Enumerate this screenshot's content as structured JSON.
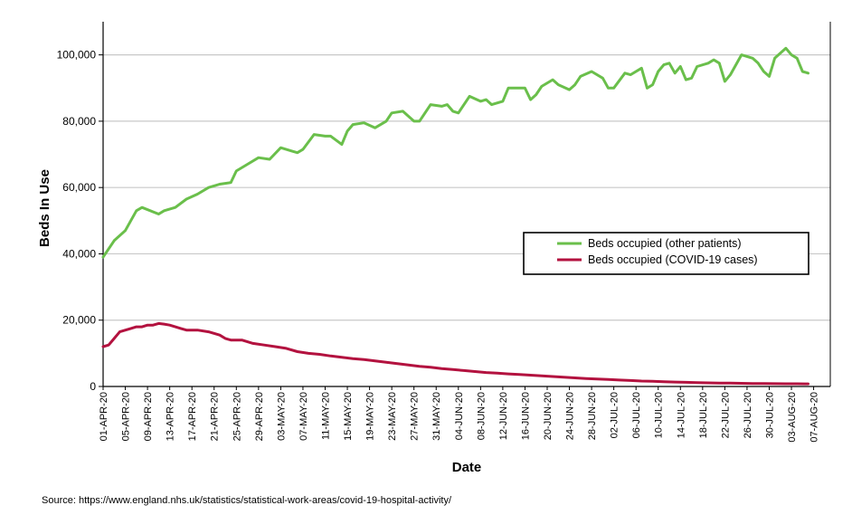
{
  "chart_data": {
    "type": "line",
    "xlabel": "Date",
    "ylabel": "Beds In Use",
    "ylim": [
      0,
      110000
    ],
    "yticks": [
      0,
      20000,
      40000,
      60000,
      80000,
      100000
    ],
    "ytick_labels": [
      "0",
      "20,000",
      "40,000",
      "60,000",
      "80,000",
      "100,000"
    ],
    "x_tick_labels": [
      "01-APR-20",
      "05-APR-20",
      "09-APR-20",
      "13-APR-20",
      "17-APR-20",
      "21-APR-20",
      "25-APR-20",
      "29-APR-20",
      "03-MAY-20",
      "07-MAY-20",
      "11-MAY-20",
      "15-MAY-20",
      "19-MAY-20",
      "23-MAY-20",
      "27-MAY-20",
      "31-MAY-20",
      "04-JUN-20",
      "08-JUN-20",
      "12-JUN-20",
      "16-JUN-20",
      "20-JUN-20",
      "24-JUN-20",
      "28-JUN-20",
      "02-JUL-20",
      "06-JUL-20",
      "10-JUL-20",
      "14-JUL-20",
      "18-JUL-20",
      "22-JUL-20",
      "26-JUL-20",
      "30-JUL-20",
      "03-AUG-20",
      "07-AUG-20"
    ],
    "x_start": "01-APR-20",
    "x_end": "10-AUG-20",
    "grid": "horizontal",
    "legend_position": "center-right",
    "series": [
      {
        "name": "Beds occupied (other patients)",
        "color": "#6abf4b",
        "anchors": [
          [
            0,
            39000
          ],
          [
            2,
            44000
          ],
          [
            4,
            47000
          ],
          [
            6,
            53000
          ],
          [
            7,
            54000
          ],
          [
            10,
            52000
          ],
          [
            11,
            53000
          ],
          [
            13,
            54000
          ],
          [
            15,
            56500
          ],
          [
            17,
            58000
          ],
          [
            19,
            60000
          ],
          [
            21,
            61000
          ],
          [
            23,
            61500
          ],
          [
            24,
            65000
          ],
          [
            26,
            67000
          ],
          [
            28,
            69000
          ],
          [
            30,
            68500
          ],
          [
            32,
            72000
          ],
          [
            34,
            71000
          ],
          [
            35,
            70500
          ],
          [
            36,
            71500
          ],
          [
            38,
            76000
          ],
          [
            40,
            75500
          ],
          [
            41,
            75500
          ],
          [
            43,
            73000
          ],
          [
            44,
            77000
          ],
          [
            45,
            79000
          ],
          [
            47,
            79500
          ],
          [
            49,
            78000
          ],
          [
            51,
            80000
          ],
          [
            52,
            82500
          ],
          [
            54,
            83000
          ],
          [
            56,
            80000
          ],
          [
            57,
            80000
          ],
          [
            59,
            85000
          ],
          [
            61,
            84500
          ],
          [
            62,
            85000
          ],
          [
            63,
            83000
          ],
          [
            64,
            82500
          ],
          [
            66,
            87500
          ],
          [
            68,
            86000
          ],
          [
            69,
            86500
          ],
          [
            70,
            85000
          ],
          [
            72,
            86000
          ],
          [
            73,
            90000
          ],
          [
            76,
            90000
          ],
          [
            77,
            86500
          ],
          [
            78,
            88000
          ],
          [
            79,
            90500
          ],
          [
            81,
            92500
          ],
          [
            82,
            91000
          ],
          [
            84,
            89500
          ],
          [
            85,
            91000
          ],
          [
            86,
            93500
          ],
          [
            88,
            95000
          ],
          [
            90,
            93000
          ],
          [
            91,
            90000
          ],
          [
            92,
            90000
          ],
          [
            94,
            94500
          ],
          [
            95,
            94000
          ],
          [
            97,
            96000
          ],
          [
            98,
            90000
          ],
          [
            99,
            91000
          ],
          [
            100,
            95000
          ],
          [
            101,
            97000
          ],
          [
            102,
            97500
          ],
          [
            103,
            94500
          ],
          [
            104,
            96500
          ],
          [
            105,
            92500
          ],
          [
            106,
            93000
          ],
          [
            107,
            96500
          ],
          [
            109,
            97500
          ],
          [
            110,
            98500
          ],
          [
            111,
            97500
          ],
          [
            112,
            92000
          ],
          [
            113,
            94000
          ],
          [
            115,
            100000
          ],
          [
            117,
            99000
          ],
          [
            118,
            97500
          ],
          [
            119,
            95000
          ],
          [
            120,
            93500
          ],
          [
            121,
            99000
          ],
          [
            123,
            102000
          ],
          [
            124,
            100000
          ],
          [
            125,
            99000
          ],
          [
            126,
            95000
          ],
          [
            127,
            94500
          ]
        ]
      },
      {
        "name": "Beds occupied (COVID-19 cases)",
        "color": "#b3123f",
        "anchors": [
          [
            0,
            12000
          ],
          [
            1,
            12500
          ],
          [
            2,
            14500
          ],
          [
            3,
            16500
          ],
          [
            5,
            17500
          ],
          [
            6,
            18000
          ],
          [
            7,
            18000
          ],
          [
            8,
            18500
          ],
          [
            9,
            18500
          ],
          [
            10,
            19000
          ],
          [
            11,
            18800
          ],
          [
            12,
            18500
          ],
          [
            13,
            18000
          ],
          [
            14,
            17500
          ],
          [
            15,
            17000
          ],
          [
            17,
            17000
          ],
          [
            19,
            16500
          ],
          [
            21,
            15500
          ],
          [
            22,
            14500
          ],
          [
            23,
            14000
          ],
          [
            25,
            14000
          ],
          [
            27,
            13000
          ],
          [
            29,
            12500
          ],
          [
            31,
            12000
          ],
          [
            33,
            11500
          ],
          [
            35,
            10500
          ],
          [
            37,
            10000
          ],
          [
            39,
            9700
          ],
          [
            41,
            9200
          ],
          [
            43,
            8800
          ],
          [
            45,
            8400
          ],
          [
            47,
            8100
          ],
          [
            49,
            7700
          ],
          [
            51,
            7300
          ],
          [
            53,
            6900
          ],
          [
            55,
            6500
          ],
          [
            57,
            6100
          ],
          [
            59,
            5800
          ],
          [
            61,
            5400
          ],
          [
            63,
            5100
          ],
          [
            65,
            4800
          ],
          [
            67,
            4500
          ],
          [
            69,
            4200
          ],
          [
            71,
            4000
          ],
          [
            73,
            3800
          ],
          [
            75,
            3600
          ],
          [
            77,
            3400
          ],
          [
            79,
            3200
          ],
          [
            81,
            3000
          ],
          [
            83,
            2800
          ],
          [
            85,
            2600
          ],
          [
            87,
            2400
          ],
          [
            89,
            2250
          ],
          [
            91,
            2100
          ],
          [
            93,
            1950
          ],
          [
            95,
            1800
          ],
          [
            97,
            1650
          ],
          [
            99,
            1550
          ],
          [
            101,
            1450
          ],
          [
            103,
            1350
          ],
          [
            105,
            1250
          ],
          [
            107,
            1150
          ],
          [
            109,
            1100
          ],
          [
            111,
            1050
          ],
          [
            113,
            1000
          ],
          [
            115,
            950
          ],
          [
            117,
            900
          ],
          [
            119,
            880
          ],
          [
            121,
            850
          ],
          [
            123,
            830
          ],
          [
            125,
            810
          ],
          [
            127,
            800
          ]
        ]
      }
    ]
  },
  "source_note": "Source: https://www.england.nhs.uk/statistics/statistical-work-areas/covid-19-hospital-activity/"
}
